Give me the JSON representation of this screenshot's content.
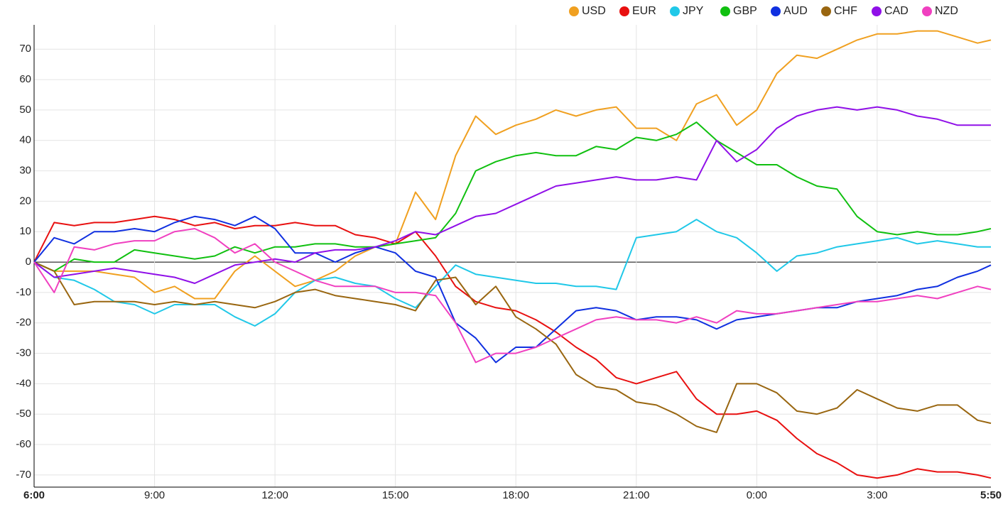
{
  "chart_data": {
    "type": "line",
    "x": [
      "6:00",
      "6:30",
      "7:00",
      "7:30",
      "8:00",
      "8:30",
      "9:00",
      "9:30",
      "10:00",
      "10:30",
      "11:00",
      "11:30",
      "12:00",
      "12:30",
      "13:00",
      "13:30",
      "14:00",
      "14:30",
      "15:00",
      "15:30",
      "16:00",
      "16:30",
      "17:00",
      "17:30",
      "18:00",
      "18:30",
      "19:00",
      "19:30",
      "20:00",
      "20:30",
      "21:00",
      "21:30",
      "22:00",
      "22:30",
      "23:00",
      "23:30",
      "0:00",
      "0:30",
      "1:00",
      "1:30",
      "2:00",
      "2:30",
      "3:00",
      "3:30",
      "4:00",
      "4:30",
      "5:00",
      "5:30",
      "5:50"
    ],
    "series": [
      {
        "name": "USD",
        "color": "#f0a020",
        "values": [
          0,
          -3,
          -3,
          -3,
          -4,
          -5,
          -10,
          -8,
          -12,
          -12,
          -3,
          2,
          -3,
          -8,
          -6,
          -3,
          2,
          5,
          6,
          23,
          14,
          35,
          48,
          42,
          45,
          47,
          50,
          48,
          50,
          51,
          44,
          44,
          40,
          52,
          55,
          45,
          50,
          62,
          68,
          67,
          70,
          73,
          75,
          75,
          76,
          76,
          74,
          72,
          73
        ]
      },
      {
        "name": "EUR",
        "color": "#e81010",
        "values": [
          0,
          13,
          12,
          13,
          13,
          14,
          15,
          14,
          12,
          13,
          11,
          12,
          12,
          13,
          12,
          12,
          9,
          8,
          6,
          10,
          2,
          -8,
          -13,
          -15,
          -16,
          -19,
          -23,
          -28,
          -32,
          -38,
          -40,
          -38,
          -36,
          -45,
          -50,
          -50,
          -49,
          -52,
          -58,
          -63,
          -66,
          -70,
          -71,
          -70,
          -68,
          -69,
          -69,
          -70,
          -71
        ]
      },
      {
        "name": "JPY",
        "color": "#20c8e8",
        "values": [
          0,
          -5,
          -6,
          -9,
          -13,
          -14,
          -17,
          -14,
          -14,
          -14,
          -18,
          -21,
          -17,
          -10,
          -6,
          -5,
          -7,
          -8,
          -12,
          -15,
          -8,
          -1,
          -4,
          -5,
          -6,
          -7,
          -7,
          -8,
          -8,
          -9,
          8,
          9,
          10,
          14,
          10,
          8,
          3,
          -3,
          2,
          3,
          5,
          6,
          7,
          8,
          6,
          7,
          6,
          5,
          5
        ]
      },
      {
        "name": "GBP",
        "color": "#10c010",
        "values": [
          0,
          -3,
          1,
          0,
          0,
          4,
          3,
          2,
          1,
          2,
          5,
          3,
          5,
          5,
          6,
          6,
          5,
          5,
          6,
          7,
          8,
          16,
          30,
          33,
          35,
          36,
          35,
          35,
          38,
          37,
          41,
          40,
          42,
          46,
          40,
          36,
          32,
          32,
          28,
          25,
          24,
          15,
          10,
          9,
          10,
          9,
          9,
          10,
          11
        ]
      },
      {
        "name": "AUD",
        "color": "#1030e0",
        "values": [
          0,
          8,
          6,
          10,
          10,
          11,
          10,
          13,
          15,
          14,
          12,
          15,
          11,
          3,
          3,
          0,
          3,
          5,
          3,
          -3,
          -5,
          -20,
          -25,
          -33,
          -28,
          -28,
          -22,
          -16,
          -15,
          -16,
          -19,
          -18,
          -18,
          -19,
          -22,
          -19,
          -18,
          -17,
          -16,
          -15,
          -15,
          -13,
          -12,
          -11,
          -9,
          -8,
          -5,
          -3,
          -1
        ]
      },
      {
        "name": "CHF",
        "color": "#996610",
        "values": [
          0,
          -3,
          -14,
          -13,
          -13,
          -13,
          -14,
          -13,
          -14,
          -13,
          -14,
          -15,
          -13,
          -10,
          -9,
          -11,
          -12,
          -13,
          -14,
          -16,
          -6,
          -5,
          -14,
          -8,
          -18,
          -22,
          -27,
          -37,
          -41,
          -42,
          -46,
          -47,
          -50,
          -54,
          -56,
          -40,
          -40,
          -43,
          -49,
          -50,
          -48,
          -42,
          -45,
          -48,
          -49,
          -47,
          -47,
          -52,
          -53
        ]
      },
      {
        "name": "CAD",
        "color": "#9010e8",
        "values": [
          0,
          -5,
          -4,
          -3,
          -2,
          -3,
          -4,
          -5,
          -7,
          -4,
          -1,
          0,
          1,
          0,
          3,
          4,
          4,
          5,
          7,
          10,
          9,
          12,
          15,
          16,
          19,
          22,
          25,
          26,
          27,
          28,
          27,
          27,
          28,
          27,
          40,
          33,
          37,
          44,
          48,
          50,
          51,
          50,
          51,
          50,
          48,
          47,
          45,
          45,
          45
        ]
      },
      {
        "name": "NZD",
        "color": "#f040c0",
        "values": [
          0,
          -10,
          5,
          4,
          6,
          7,
          7,
          10,
          11,
          8,
          3,
          6,
          0,
          -3,
          -6,
          -8,
          -8,
          -8,
          -10,
          -10,
          -11,
          -20,
          -33,
          -30,
          -30,
          -28,
          -25,
          -22,
          -19,
          -18,
          -19,
          -19,
          -20,
          -18,
          -20,
          -16,
          -17,
          -17,
          -16,
          -15,
          -14,
          -13,
          -13,
          -12,
          -11,
          -12,
          -10,
          -8,
          -9
        ]
      }
    ],
    "xlim": [
      "6:00",
      "5:50"
    ],
    "xticks": [
      "6:00",
      "9:00",
      "12:00",
      "15:00",
      "18:00",
      "21:00",
      "0:00",
      "3:00",
      "5:50"
    ],
    "ylim": [
      -74,
      78
    ],
    "yticks": [
      -70,
      -60,
      -50,
      -40,
      -30,
      -20,
      -10,
      0,
      10,
      20,
      30,
      40,
      50,
      60,
      70
    ],
    "grid": true,
    "legend": "top-right"
  }
}
